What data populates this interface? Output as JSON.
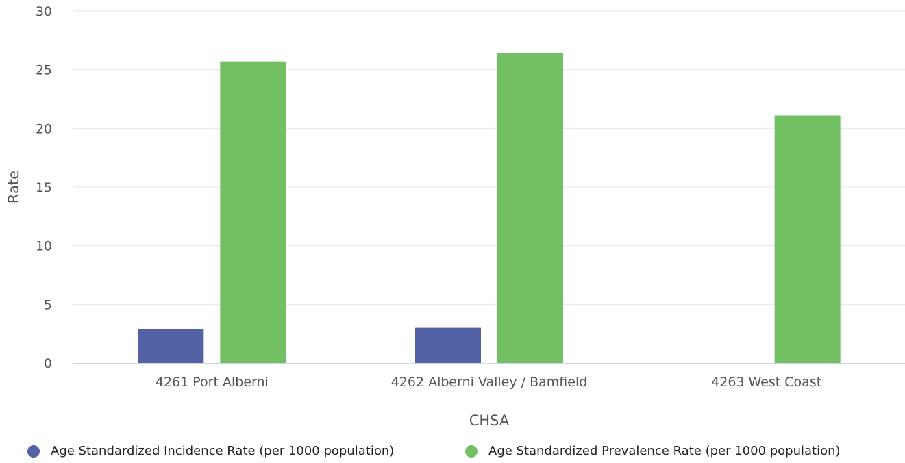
{
  "chart_data": {
    "type": "bar",
    "title": "",
    "xlabel": "CHSA",
    "ylabel": "Rate",
    "ylim": [
      0,
      30
    ],
    "yticks": [
      0,
      5,
      10,
      15,
      20,
      25,
      30
    ],
    "grid": true,
    "legend_position": "bottom",
    "categories": [
      "4261 Port Alberni",
      "4262 Alberni Valley / Bamfield",
      "4263 West Coast"
    ],
    "series": [
      {
        "name": "Age Standardized Incidence Rate (per 1000 population)",
        "color": "#5262a5",
        "values": [
          2.9,
          3.0,
          null
        ]
      },
      {
        "name": "Age Standardized Prevalence Rate (per 1000 population)",
        "color": "#72c063",
        "values": [
          25.7,
          26.4,
          21.1
        ]
      }
    ]
  },
  "legend": {
    "items": [
      {
        "label": "Age Standardized Incidence Rate (per 1000 population)",
        "color": "#5262a5",
        "icon": "circle"
      },
      {
        "label": "Age Standardized Prevalence Rate (per 1000 population)",
        "color": "#72c063",
        "icon": "circle"
      }
    ]
  }
}
